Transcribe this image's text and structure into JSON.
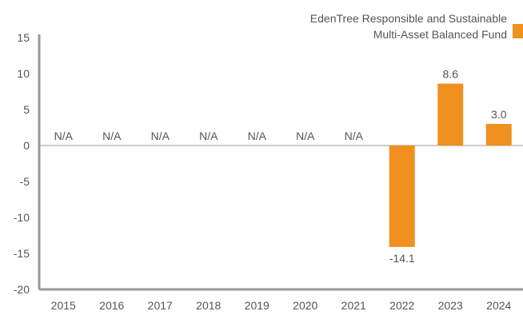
{
  "chart_data": {
    "type": "bar",
    "title": "",
    "xlabel": "",
    "ylabel": "",
    "categories": [
      "2015",
      "2016",
      "2017",
      "2018",
      "2019",
      "2020",
      "2021",
      "2022",
      "2023",
      "2024"
    ],
    "series": [
      {
        "name": "EdenTree Responsible and Sustainable Multi-Asset Balanced Fund",
        "legend_lines": [
          "EdenTree Responsible and Sustainable",
          "Multi-Asset Balanced Fund"
        ],
        "values": [
          null,
          null,
          null,
          null,
          null,
          null,
          null,
          -14.1,
          8.6,
          3.0
        ],
        "labels": [
          "N/A",
          "N/A",
          "N/A",
          "N/A",
          "N/A",
          "N/A",
          "N/A",
          "-14.1",
          "8.6",
          "3.0"
        ],
        "color": "#f0901e"
      }
    ],
    "ylim": [
      -20,
      15
    ],
    "yticks": [
      "15",
      "10",
      "5",
      "0",
      "-5",
      "-10",
      "-15",
      "-20"
    ],
    "grid": false,
    "legend_position": "top-right",
    "axis_color": "#999999"
  }
}
